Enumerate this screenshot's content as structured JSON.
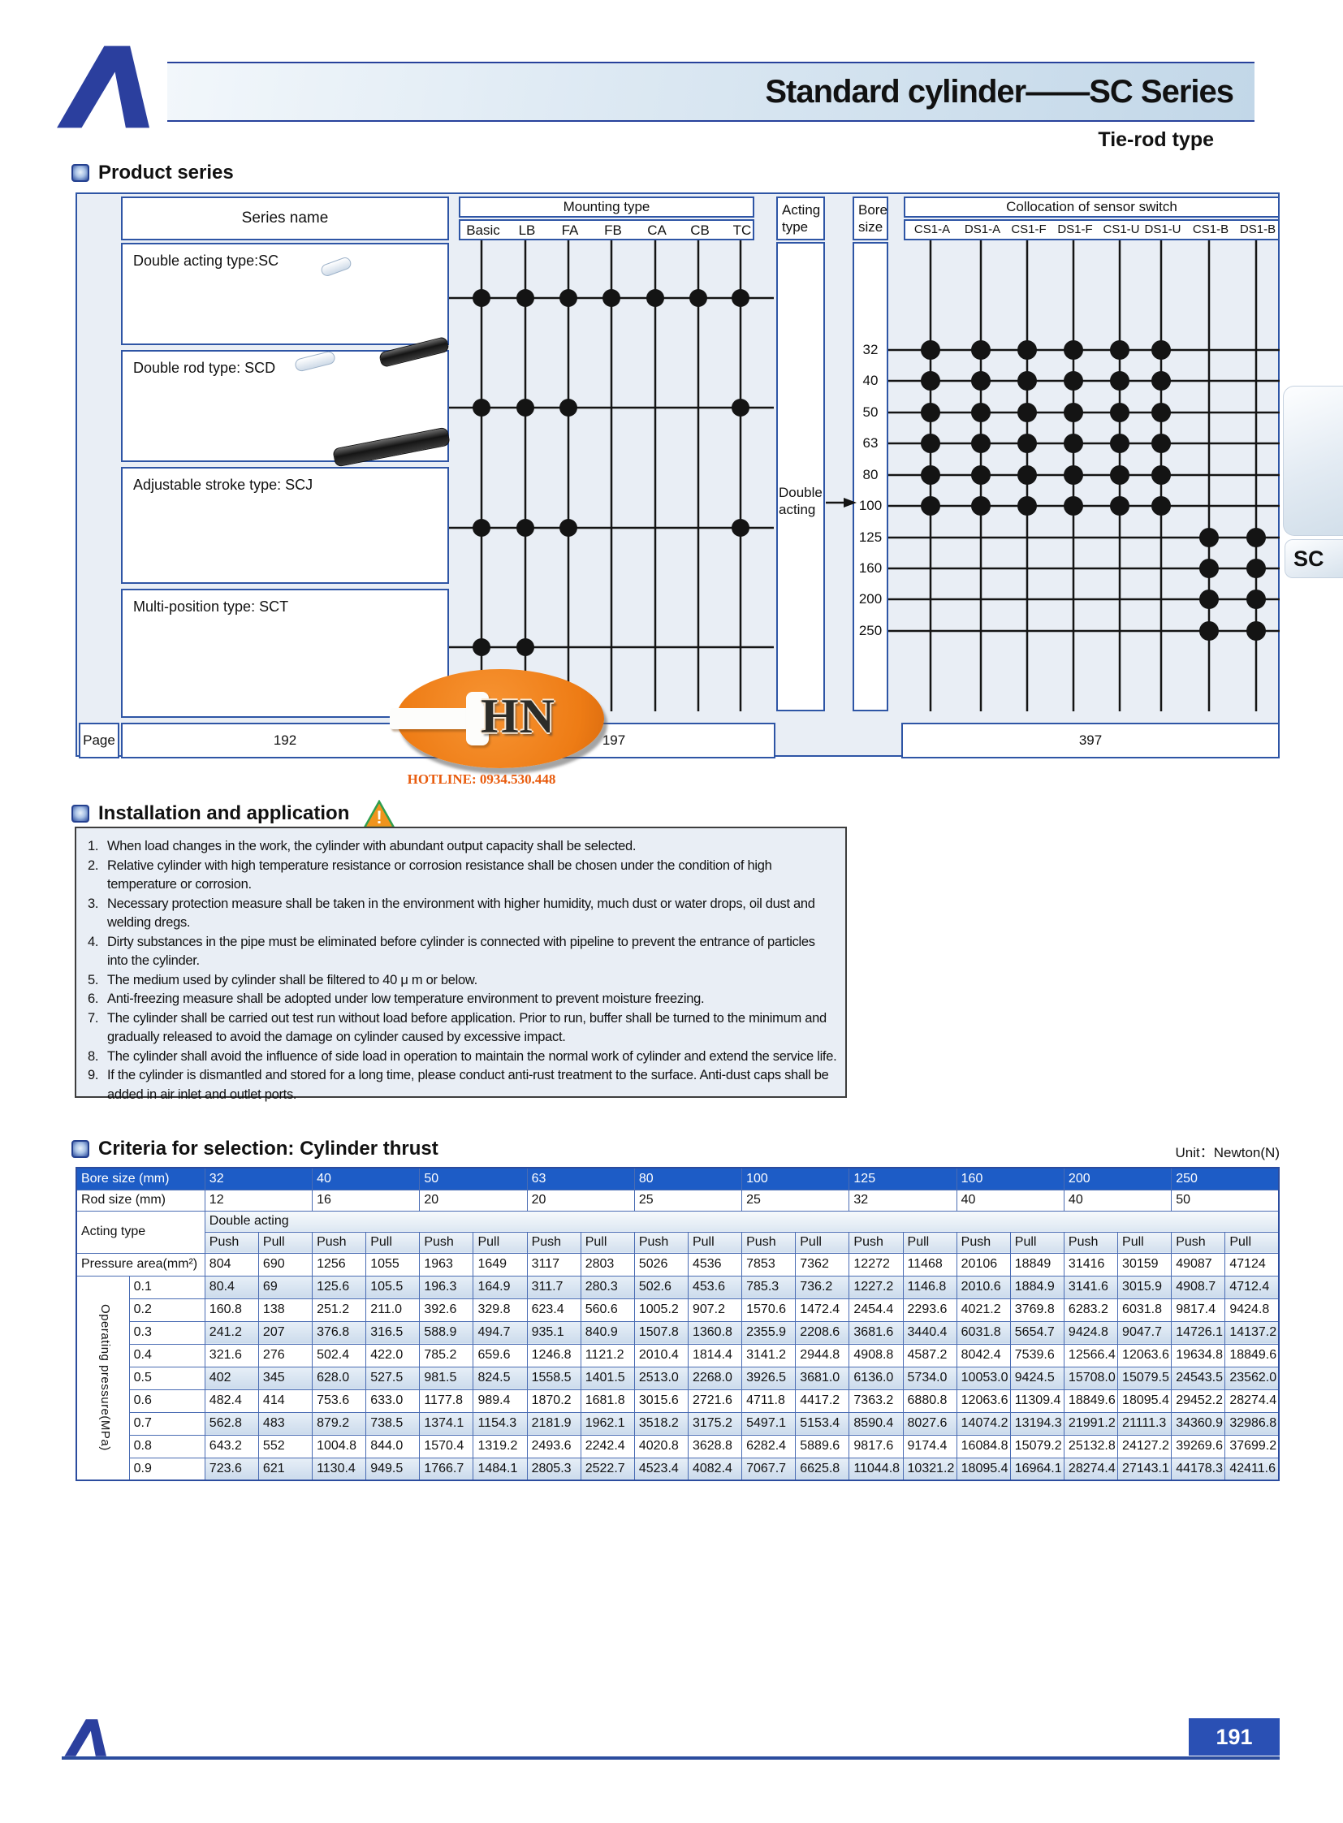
{
  "colors": {
    "accent_blue": "#2b4c9e",
    "table_header_blue": "#1d5cc6",
    "panel_bg": "#e9eef5",
    "watermark_orange": "#ee7c15"
  },
  "header": {
    "title": "Standard cylinder——SC Series",
    "subtitle": "Tie-rod type"
  },
  "sections": {
    "product_series": "Product series",
    "installation": "Installation and application",
    "criteria": "Criteria for selection: Cylinder thrust",
    "unit_label": "Unit：Newton(N)"
  },
  "side_tab": "SC",
  "watermark": {
    "logo_text": "HN",
    "hotline": "HOTLINE: 0934.530.448"
  },
  "product_table": {
    "series_header": "Series name",
    "mounting_header": "Mounting type",
    "acting_header": "Acting type",
    "bore_header": "Bore size",
    "sensor_header": "Collocation of sensor switch",
    "mounting_columns": [
      "Basic",
      "LB",
      "FA",
      "FB",
      "CA",
      "CB",
      "TC"
    ],
    "sensor_columns": [
      "CS1-A",
      "DS1-A",
      "CS1-F",
      "DS1-F",
      "CS1-U",
      "DS1-U",
      "CS1-B",
      "DS1-B"
    ],
    "series": [
      {
        "label": "Double acting type:SC",
        "mounting": [
          1,
          1,
          1,
          1,
          1,
          1,
          1
        ]
      },
      {
        "label": "Double rod type: SCD",
        "mounting": [
          1,
          1,
          1,
          0,
          0,
          0,
          1
        ]
      },
      {
        "label": "Adjustable stroke type: SCJ",
        "mounting": [
          1,
          1,
          1,
          0,
          0,
          0,
          1
        ]
      },
      {
        "label": "Multi-position type: SCT",
        "mounting": [
          1,
          1,
          0,
          0,
          0,
          0,
          0
        ]
      }
    ],
    "acting_label": "Double acting",
    "bore_sizes": [
      "32",
      "40",
      "50",
      "63",
      "80",
      "100",
      "125",
      "160",
      "200",
      "250"
    ],
    "sensor_matrix": [
      [
        1,
        1,
        1,
        1,
        1,
        1,
        0,
        0
      ],
      [
        1,
        1,
        1,
        1,
        1,
        1,
        0,
        0
      ],
      [
        1,
        1,
        1,
        1,
        1,
        1,
        0,
        0
      ],
      [
        1,
        1,
        1,
        1,
        1,
        1,
        0,
        0
      ],
      [
        1,
        1,
        1,
        1,
        1,
        1,
        0,
        0
      ],
      [
        1,
        1,
        1,
        1,
        1,
        1,
        0,
        0
      ],
      [
        0,
        0,
        0,
        0,
        0,
        0,
        1,
        1
      ],
      [
        0,
        0,
        0,
        0,
        0,
        0,
        1,
        1
      ],
      [
        0,
        0,
        0,
        0,
        0,
        0,
        1,
        1
      ],
      [
        0,
        0,
        0,
        0,
        0,
        0,
        1,
        1
      ]
    ],
    "page_row": {
      "label": "Page",
      "series_page": "192",
      "mounting_page": "197",
      "sensor_page": "397"
    }
  },
  "installation": {
    "items": [
      {
        "num": "1.",
        "text": "When load changes in the work, the cylinder with abundant output capacity shall be selected."
      },
      {
        "num": "2.",
        "text": "Relative cylinder with high temperature resistance or corrosion resistance shall be chosen under the condition of high temperature or corrosion."
      },
      {
        "num": "3.",
        "text": "Necessary protection measure shall be taken in the environment with higher humidity, much dust or water drops, oil dust and welding dregs."
      },
      {
        "num": "4.",
        "text": "Dirty substances in the pipe must be eliminated before cylinder is connected with pipeline to prevent the entrance of particles into the cylinder."
      },
      {
        "num": "5.",
        "text": "The medium used by cylinder shall be filtered to 40 μ m or below."
      },
      {
        "num": "6.",
        "text": " Anti-freezing measure shall be adopted under low temperature environment to prevent moisture freezing."
      },
      {
        "num": "7.",
        "text": "The cylinder shall be carried out test run without load before application. Prior to run, buffer shall be turned to the minimum and gradually released to avoid the damage on cylinder caused by excessive impact."
      },
      {
        "num": "8.",
        "text": "The cylinder shall avoid the influence of side load in operation to maintain the normal work of cylinder and extend the service life."
      },
      {
        "num": "9.",
        "text": "If the cylinder is dismantled and stored for a long time, please conduct anti-rust treatment to the  surface. Anti-dust caps shall be added in air inlet and outlet ports."
      }
    ]
  },
  "thrust_table": {
    "bore_row_label": "Bore size  (mm)",
    "rod_row_label": "Rod size  (mm)",
    "acting_row_label": "Acting type",
    "pressure_area_label": "Pressure area(mm²)",
    "operating_label": "Operating pressure(MPa)",
    "double_acting": "Double acting",
    "push": "Push",
    "pull": "Pull",
    "bore_sizes": [
      "32",
      "40",
      "50",
      "63",
      "80",
      "100",
      "125",
      "160",
      "200",
      "250"
    ],
    "rod_sizes": [
      "12",
      "16",
      "20",
      "20",
      "25",
      "25",
      "32",
      "40",
      "40",
      "50"
    ],
    "pressure_area": [
      "804",
      "690",
      "1256",
      "1055",
      "1963",
      "1649",
      "3117",
      "2803",
      "5026",
      "4536",
      "7853",
      "7362",
      "12272",
      "11468",
      "20106",
      "18849",
      "31416",
      "30159",
      "49087",
      "47124"
    ],
    "rows": [
      {
        "pressure": "0.1",
        "values": [
          "80.4",
          "69",
          "125.6",
          "105.5",
          "196.3",
          "164.9",
          "311.7",
          "280.3",
          "502.6",
          "453.6",
          "785.3",
          "736.2",
          "1227.2",
          "1146.8",
          "2010.6",
          "1884.9",
          "3141.6",
          "3015.9",
          "4908.7",
          "4712.4"
        ]
      },
      {
        "pressure": "0.2",
        "values": [
          "160.8",
          "138",
          "251.2",
          "211.0",
          "392.6",
          "329.8",
          "623.4",
          "560.6",
          "1005.2",
          "907.2",
          "1570.6",
          "1472.4",
          "2454.4",
          "2293.6",
          "4021.2",
          "3769.8",
          "6283.2",
          "6031.8",
          "9817.4",
          "9424.8"
        ]
      },
      {
        "pressure": "0.3",
        "values": [
          "241.2",
          "207",
          "376.8",
          "316.5",
          "588.9",
          "494.7",
          "935.1",
          "840.9",
          "1507.8",
          "1360.8",
          "2355.9",
          "2208.6",
          "3681.6",
          "3440.4",
          "6031.8",
          "5654.7",
          "9424.8",
          "9047.7",
          "14726.1",
          "14137.2"
        ]
      },
      {
        "pressure": "0.4",
        "values": [
          "321.6",
          "276",
          "502.4",
          "422.0",
          "785.2",
          "659.6",
          "1246.8",
          "1121.2",
          "2010.4",
          "1814.4",
          "3141.2",
          "2944.8",
          "4908.8",
          "4587.2",
          "8042.4",
          "7539.6",
          "12566.4",
          "12063.6",
          "19634.8",
          "18849.6"
        ]
      },
      {
        "pressure": "0.5",
        "values": [
          "402",
          "345",
          "628.0",
          "527.5",
          "981.5",
          "824.5",
          "1558.5",
          "1401.5",
          "2513.0",
          "2268.0",
          "3926.5",
          "3681.0",
          "6136.0",
          "5734.0",
          "10053.0",
          "9424.5",
          "15708.0",
          "15079.5",
          "24543.5",
          "23562.0"
        ]
      },
      {
        "pressure": "0.6",
        "values": [
          "482.4",
          "414",
          "753.6",
          "633.0",
          "1177.8",
          "989.4",
          "1870.2",
          "1681.8",
          "3015.6",
          "2721.6",
          "4711.8",
          "4417.2",
          "7363.2",
          "6880.8",
          "12063.6",
          "11309.4",
          "18849.6",
          "18095.4",
          "29452.2",
          "28274.4"
        ]
      },
      {
        "pressure": "0.7",
        "values": [
          "562.8",
          "483",
          "879.2",
          "738.5",
          "1374.1",
          "1154.3",
          "2181.9",
          "1962.1",
          "3518.2",
          "3175.2",
          "5497.1",
          "5153.4",
          "8590.4",
          "8027.6",
          "14074.2",
          "13194.3",
          "21991.2",
          "21111.3",
          "34360.9",
          "32986.8"
        ]
      },
      {
        "pressure": "0.8",
        "values": [
          "643.2",
          "552",
          "1004.8",
          "844.0",
          "1570.4",
          "1319.2",
          "2493.6",
          "2242.4",
          "4020.8",
          "3628.8",
          "6282.4",
          "5889.6",
          "9817.6",
          "9174.4",
          "16084.8",
          "15079.2",
          "25132.8",
          "24127.2",
          "39269.6",
          "37699.2"
        ]
      },
      {
        "pressure": "0.9",
        "values": [
          "723.6",
          "621",
          "1130.4",
          "949.5",
          "1766.7",
          "1484.1",
          "2805.3",
          "2522.7",
          "4523.4",
          "4082.4",
          "7067.7",
          "6625.8",
          "11044.8",
          "10321.2",
          "18095.4",
          "16964.1",
          "28274.4",
          "27143.1",
          "44178.3",
          "42411.6"
        ]
      }
    ]
  },
  "footer": {
    "page_number": "191"
  }
}
